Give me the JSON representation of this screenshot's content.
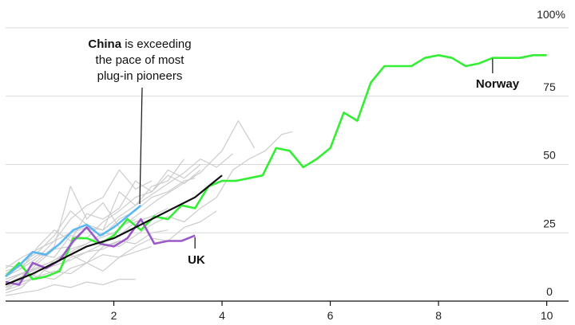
{
  "chart_data": {
    "type": "line",
    "xlim": [
      0,
      10.05
    ],
    "ylim": [
      0,
      100
    ],
    "x_ticks": [
      2,
      4,
      6,
      8,
      10
    ],
    "x_tick_labels": [
      "2",
      "4",
      "6",
      "8",
      "10"
    ],
    "y_ticks": [
      0,
      25,
      50,
      75,
      100
    ],
    "y_tick_labels": [
      "0",
      "25",
      "50",
      "75",
      "100%"
    ],
    "grid": "horizontal",
    "colors": {
      "norway": "#33ee33",
      "china": "#5bb8f0",
      "uk": "#9b59c8",
      "black": "#111111",
      "grey": "#cccccc"
    },
    "annotations": {
      "china_line1_bold": "China",
      "china_line1_rest": " is exceeding",
      "china_line2": "the pace of most",
      "china_line3": "plug-in pioneers",
      "norway": "Norway",
      "uk": "UK"
    },
    "series": [
      {
        "key": "norway",
        "name": "Norway",
        "x": [
          0,
          0.25,
          0.5,
          0.75,
          1,
          1.25,
          1.5,
          1.75,
          2,
          2.25,
          2.5,
          2.75,
          3,
          3.25,
          3.5,
          3.75,
          4,
          4.25,
          4.5,
          4.75,
          5,
          5.25,
          5.5,
          5.75,
          6,
          6.25,
          6.5,
          6.75,
          7,
          7.25,
          7.5,
          7.75,
          8,
          8.25,
          8.5,
          8.75,
          9,
          9.25,
          9.5,
          9.75,
          10
        ],
        "y": [
          9,
          14,
          8,
          9,
          11,
          23,
          23,
          21,
          24,
          30,
          26,
          31,
          30,
          35,
          34,
          42,
          44,
          44,
          45,
          46,
          56,
          55,
          49,
          52,
          56,
          69,
          66,
          80,
          86,
          86,
          86,
          89,
          90,
          89,
          86,
          87,
          89,
          89,
          89,
          90,
          90
        ]
      },
      {
        "key": "china",
        "name": "China",
        "x": [
          0,
          0.25,
          0.5,
          0.75,
          1,
          1.25,
          1.5,
          1.75,
          2,
          2.25,
          2.5
        ],
        "y": [
          9,
          13,
          18,
          17,
          21,
          26,
          28,
          24,
          27,
          31,
          35
        ]
      },
      {
        "key": "uk",
        "name": "UK",
        "x": [
          0,
          0.25,
          0.5,
          0.75,
          1,
          1.25,
          1.5,
          1.75,
          2,
          2.25,
          2.5,
          2.75,
          3,
          3.25,
          3.5
        ],
        "y": [
          7,
          6,
          14,
          12,
          15,
          22,
          27,
          21,
          20,
          23,
          30,
          21,
          22,
          22,
          24
        ]
      },
      {
        "key": "black",
        "x": [
          0,
          0.5,
          1,
          1.5,
          2,
          2.5,
          3,
          3.5,
          4
        ],
        "y": [
          6,
          10,
          15,
          20,
          23,
          28,
          33,
          38,
          46
        ]
      }
    ],
    "grey_series": [
      {
        "x": [
          0,
          0.3,
          0.6,
          0.9,
          1.2,
          1.5,
          1.8,
          2.1,
          2.4,
          2.7,
          3.0,
          3.3,
          3.6,
          3.9,
          4.2,
          4.5,
          4.8,
          5.1,
          5.3
        ],
        "y": [
          5,
          9,
          12,
          10,
          16,
          18,
          21,
          20,
          24,
          28,
          31,
          29,
          34,
          38,
          48,
          52,
          55,
          61,
          62
        ]
      },
      {
        "x": [
          0,
          0.4,
          0.8,
          1.2,
          1.6,
          2.0,
          2.4,
          2.8,
          3.2,
          3.6,
          4.0,
          4.3,
          4.6
        ],
        "y": [
          8,
          11,
          14,
          18,
          22,
          25,
          31,
          37,
          42,
          47,
          55,
          66,
          56
        ]
      },
      {
        "x": [
          0,
          0.3,
          0.6,
          0.9,
          1.2,
          1.5,
          1.8,
          2.1,
          2.4,
          2.7,
          3.0,
          3.3,
          3.6,
          3.9,
          4.2
        ],
        "y": [
          12,
          16,
          19,
          22,
          25,
          27,
          26,
          31,
          35,
          39,
          43,
          47,
          52,
          49,
          54
        ]
      },
      {
        "x": [
          0,
          0.3,
          0.6,
          0.9,
          1.2,
          1.5,
          1.8,
          2.1,
          2.4,
          2.7,
          3.0,
          3.3
        ],
        "y": [
          10,
          14,
          18,
          24,
          33,
          28,
          26,
          40,
          35,
          42,
          44,
          52
        ]
      },
      {
        "x": [
          0,
          0.3,
          0.6,
          0.9,
          1.2,
          1.5,
          1.8,
          2.1,
          2.4,
          2.7,
          3.0,
          3.3,
          3.5
        ],
        "y": [
          4,
          8,
          14,
          19,
          20,
          27,
          24,
          30,
          33,
          38,
          40,
          44,
          45
        ]
      },
      {
        "x": [
          0,
          0.3,
          0.6,
          0.9,
          1.2,
          1.5,
          1.8,
          2.1,
          2.4
        ],
        "y": [
          6,
          9,
          15,
          20,
          42,
          30,
          36,
          27,
          30
        ]
      },
      {
        "x": [
          0,
          0.3,
          0.6,
          0.9,
          1.2,
          1.5,
          1.8,
          2.1,
          2.4,
          2.7
        ],
        "y": [
          9,
          12,
          16,
          22,
          30,
          35,
          38,
          48,
          41,
          44
        ]
      },
      {
        "x": [
          0,
          0.3,
          0.6,
          0.9,
          1.2,
          1.5,
          1.8,
          2.1
        ],
        "y": [
          3,
          5,
          11,
          13,
          15,
          18,
          19,
          22
        ]
      },
      {
        "x": [
          0,
          0.3,
          0.6,
          0.9,
          1.2,
          1.5,
          1.8,
          2.1,
          2.4,
          2.7,
          3.0
        ],
        "y": [
          7,
          10,
          9,
          15,
          17,
          14,
          20,
          22,
          21,
          25,
          26
        ]
      },
      {
        "x": [
          0,
          0.3,
          0.6,
          0.9,
          1.2,
          1.5,
          1.8,
          2.1,
          2.4,
          2.7,
          3.0,
          3.3,
          3.6
        ],
        "y": [
          11,
          13,
          17,
          16,
          24,
          23,
          29,
          33,
          38,
          40,
          46,
          43,
          48
        ]
      },
      {
        "x": [
          0,
          0.3,
          0.6,
          0.9,
          1.2,
          1.5,
          1.8,
          2.1,
          2.4,
          2.7
        ],
        "y": [
          5,
          7,
          9,
          8,
          12,
          14,
          11,
          16,
          18,
          20
        ]
      },
      {
        "x": [
          0,
          0.3,
          0.6,
          0.9,
          1.2,
          1.5,
          1.8,
          2.1,
          2.4
        ],
        "y": [
          2,
          3,
          4,
          6,
          5,
          7,
          6,
          8,
          8
        ]
      },
      {
        "x": [
          0,
          0.3,
          0.6,
          0.9,
          1.2,
          1.5,
          1.8,
          2.1,
          2.4,
          2.7,
          3.0,
          3.3,
          3.6,
          3.9
        ],
        "y": [
          4,
          6,
          9,
          11,
          10,
          14,
          17,
          16,
          20,
          23,
          22,
          27,
          29,
          33
        ]
      },
      {
        "x": [
          0,
          0.3,
          0.6,
          0.9,
          1.2,
          1.5,
          1.8,
          2.1,
          2.4,
          2.7,
          3.0,
          3.3,
          3.6
        ],
        "y": [
          13,
          12,
          20,
          26,
          22,
          32,
          30,
          34,
          44,
          40,
          48,
          45,
          50
        ]
      },
      {
        "x": [
          0,
          0.3,
          0.6,
          0.9,
          1.2,
          1.5,
          1.8,
          2.1,
          2.4,
          2.7,
          3.0
        ],
        "y": [
          8,
          10,
          12,
          15,
          19,
          21,
          25,
          24,
          29,
          31,
          34
        ]
      }
    ]
  }
}
